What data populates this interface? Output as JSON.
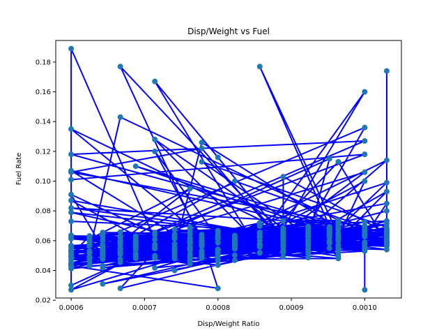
{
  "chart_data": {
    "type": "scatter",
    "title": "Disp/Weight vs Fuel",
    "xlabel": "Disp/Weight Ratio",
    "ylabel": "Fuel Rate",
    "xlim": [
      0.000579,
      0.00105
    ],
    "ylim": [
      0.0215,
      0.1945
    ],
    "x_ticks": [
      {
        "value": 0.0006,
        "label": "0.0006"
      },
      {
        "value": 0.0007,
        "label": "0.0007"
      },
      {
        "value": 0.0008,
        "label": "0.0008"
      },
      {
        "value": 0.0009,
        "label": "0.0009"
      },
      {
        "value": 0.001,
        "label": "0.0010"
      }
    ],
    "y_ticks": [
      {
        "value": 0.02,
        "label": "0.02"
      },
      {
        "value": 0.04,
        "label": "0.04"
      },
      {
        "value": 0.06,
        "label": "0.06"
      },
      {
        "value": 0.08,
        "label": "0.08"
      },
      {
        "value": 0.1,
        "label": "0.10"
      },
      {
        "value": 0.12,
        "label": "0.12"
      },
      {
        "value": 0.14,
        "label": "0.14"
      },
      {
        "value": 0.16,
        "label": "0.16"
      },
      {
        "value": 0.18,
        "label": "0.18"
      }
    ],
    "grid": false,
    "line_color": "#0000ff",
    "marker_color": "#1f77b4",
    "x_levels": [
      0.0006,
      0.000625,
      0.000643,
      0.000667,
      0.000688,
      0.000714,
      0.000741,
      0.000762,
      0.000778,
      0.0008,
      0.000823,
      0.000857,
      0.000889,
      0.000923,
      0.000952,
      0.000964,
      0.001,
      0.00103
    ],
    "points": [
      [
        0.0006,
        0.189
      ],
      [
        0.000857,
        0.177
      ],
      [
        0.0006,
        0.135
      ],
      [
        0.001,
        0.136
      ],
      [
        0.000667,
        0.177
      ],
      [
        0.0008,
        0.116
      ],
      [
        0.000714,
        0.167
      ],
      [
        0.000741,
        0.048
      ],
      [
        0.0006,
        0.118
      ],
      [
        0.001,
        0.127
      ],
      [
        0.000667,
        0.143
      ],
      [
        0.00103,
        0.114
      ],
      [
        0.000714,
        0.128
      ],
      [
        0.001,
        0.16
      ],
      [
        0.000688,
        0.11
      ],
      [
        0.00103,
        0.174
      ],
      [
        0.000778,
        0.126
      ],
      [
        0.0006,
        0.03
      ],
      [
        0.000778,
        0.122
      ],
      [
        0.0006,
        0.106
      ],
      [
        0.001,
        0.118
      ],
      [
        0.0006,
        0.101
      ],
      [
        0.00103,
        0.099
      ],
      [
        0.000714,
        0.12
      ],
      [
        0.0008,
        0.028
      ],
      [
        0.0006,
        0.107
      ],
      [
        0.00103,
        0.093
      ],
      [
        0.000952,
        0.115
      ],
      [
        0.000643,
        0.031
      ],
      [
        0.001,
        0.106
      ],
      [
        0.0006,
        0.091
      ],
      [
        0.000964,
        0.113
      ],
      [
        0.000667,
        0.028
      ],
      [
        0.001,
        0.1
      ],
      [
        0.0006,
        0.087
      ],
      [
        0.000778,
        0.113
      ],
      [
        0.0006,
        0.027
      ],
      [
        0.00103,
        0.085
      ],
      [
        0.000889,
        0.103
      ],
      [
        0.0006,
        0.082
      ],
      [
        0.00103,
        0.057
      ],
      [
        0.001,
        0.027
      ],
      [
        0.000823,
        0.1
      ],
      [
        0.0006,
        0.073
      ],
      [
        0.001,
        0.053
      ],
      [
        0.000762,
        0.095
      ],
      [
        0.0006,
        0.079
      ],
      [
        0.00103,
        0.08
      ]
    ]
  }
}
